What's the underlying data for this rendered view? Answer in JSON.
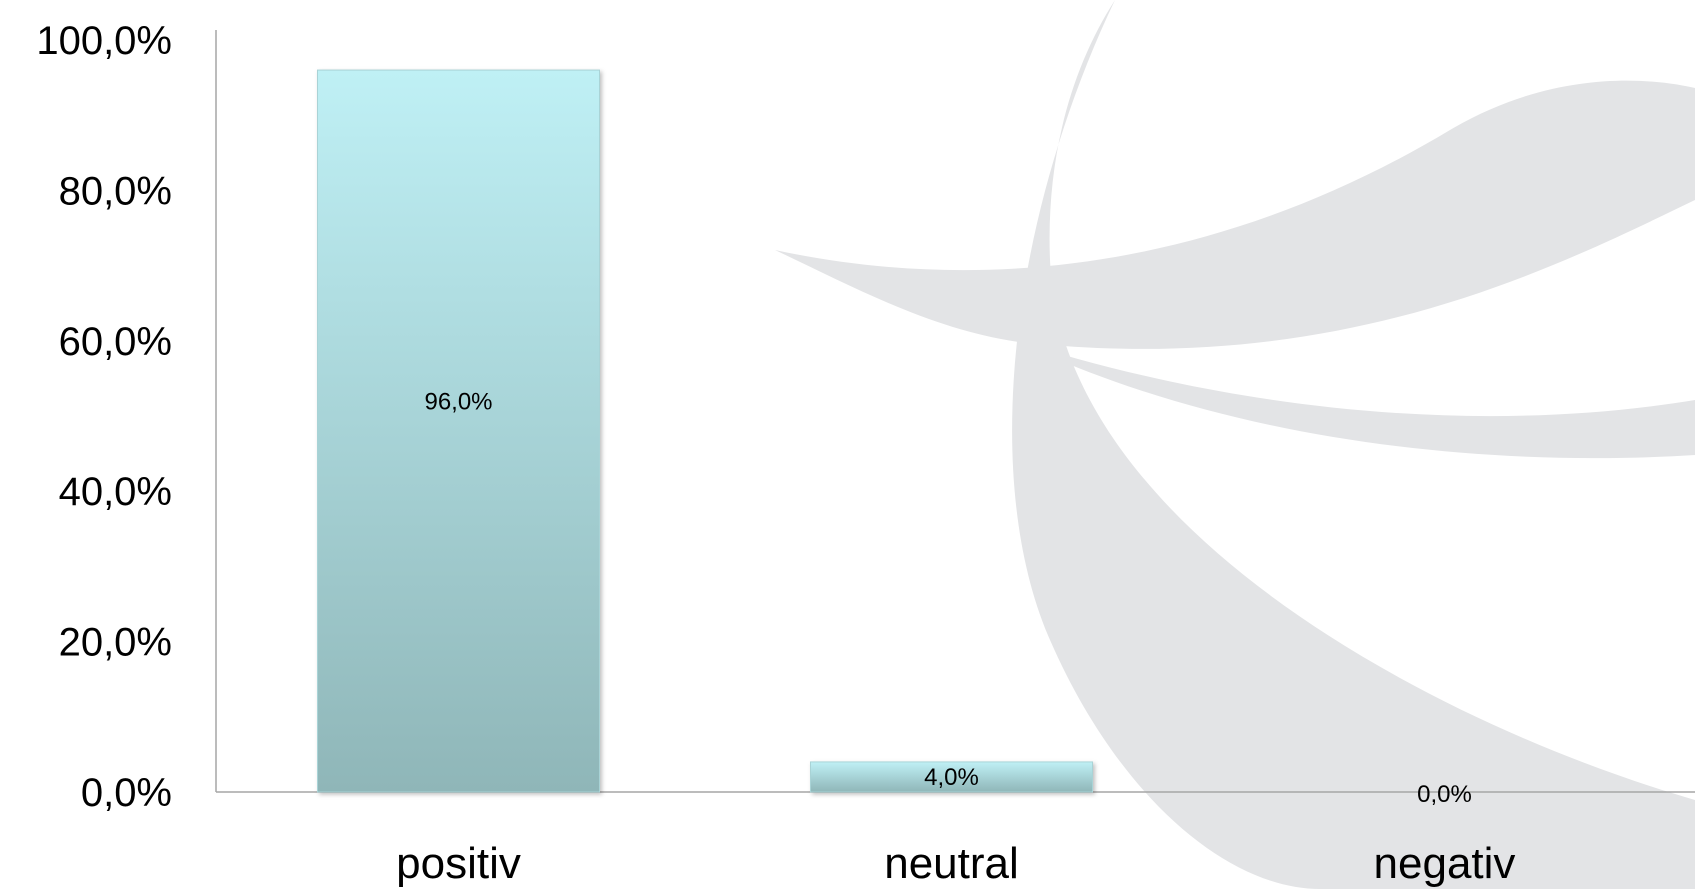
{
  "chart_data": {
    "type": "bar",
    "categories": [
      "positiv",
      "neutral",
      "negativ"
    ],
    "values": [
      96.0,
      4.0,
      0.0
    ],
    "data_labels": [
      "96,0%",
      "4,0%",
      "0,0%"
    ],
    "y_ticks": [
      0,
      20,
      40,
      60,
      80,
      100
    ],
    "y_tick_labels": [
      "0,0%",
      "20,0%",
      "40,0%",
      "60,0%",
      "80,0%",
      "100,0%"
    ],
    "ylim": [
      0,
      100
    ],
    "title": "",
    "xlabel": "",
    "ylabel": "",
    "grid": false,
    "legend": "none",
    "colors": {
      "bar_top": "#bff0f5",
      "bar_bottom": "#8fb6b8",
      "axis": "#a6a6a6",
      "watermark": "#e3e4e6"
    }
  }
}
